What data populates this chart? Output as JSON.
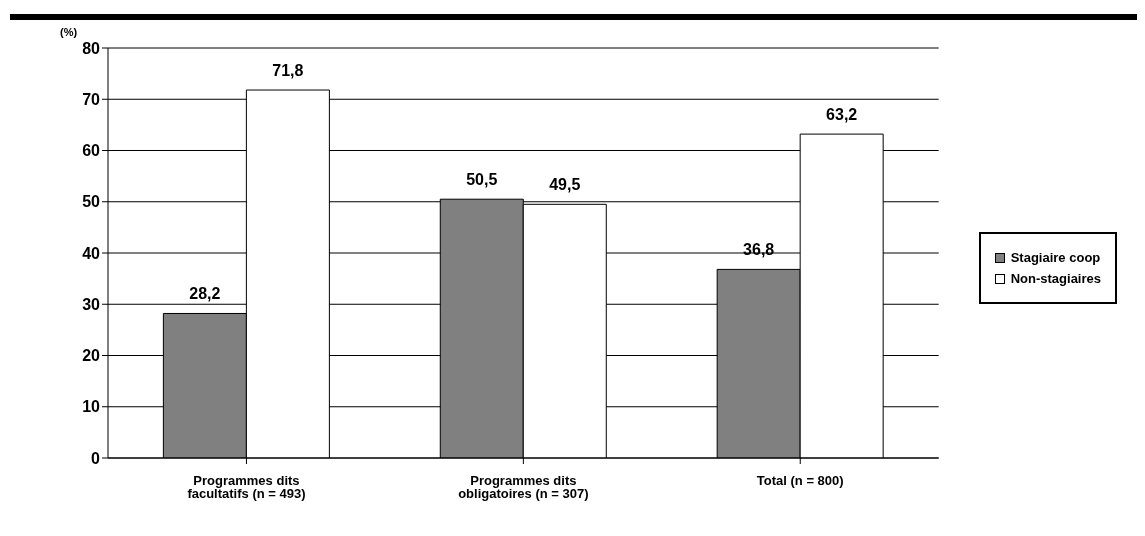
{
  "chart_data": {
    "type": "bar",
    "ylabel": "(%)",
    "categories": [
      "Programmes dits facultatifs (n = 493)",
      "Programmes dits obligatoires (n = 307)",
      "Total (n = 800)"
    ],
    "series": [
      {
        "name": "Stagiaire coop",
        "color": "#808080",
        "values": [
          28.2,
          50.5,
          36.8
        ],
        "value_labels": [
          "28,2",
          "50,5",
          "36,8"
        ]
      },
      {
        "name": "Non-stagiaires",
        "color": "#ffffff",
        "values": [
          71.8,
          49.5,
          63.2
        ],
        "value_labels": [
          "71,8",
          "49,5",
          "63,2"
        ]
      }
    ],
    "ylim": [
      0,
      80
    ],
    "yticks": [
      0,
      10,
      20,
      30,
      40,
      50,
      60,
      70,
      80
    ],
    "grid": "y",
    "legend": "right"
  }
}
